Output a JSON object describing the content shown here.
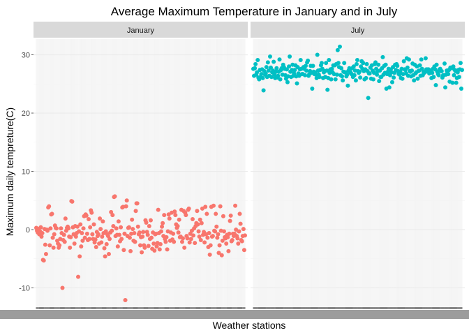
{
  "chart_data": {
    "type": "scatter",
    "title": "Average Maximum Temperature in January and in July",
    "xlabel": "Weather stations",
    "ylabel": "Maximum daily tempreture(C)",
    "yticks": [
      -10,
      0,
      10,
      20,
      30
    ],
    "ylim": [
      -13.3,
      32.7
    ],
    "grid": true,
    "legend": "none",
    "panels": [
      {
        "name": "January",
        "color": "#F8766D",
        "values": [
          0.3,
          -0.2,
          -0.5,
          0.1,
          -0.8,
          -0.3,
          0.4,
          -1.2,
          -0.6,
          -5.2,
          -5.3,
          0.1,
          -2.6,
          -4.2,
          0.0,
          -0.2,
          3.8,
          4.0,
          -2.7,
          0.2,
          2.6,
          2.7,
          -1.4,
          -3.1,
          -0.8,
          0.7,
          0.3,
          0.2,
          -1.9,
          -2.4,
          -3.1,
          -2.7,
          -1.6,
          0.2,
          -0.6,
          -10.0,
          -1.8,
          -0.9,
          -2.1,
          1.9,
          -0.2,
          0.3,
          0.5,
          0.2,
          -1.2,
          -3.1,
          -1.3,
          4.9,
          4.8,
          0.4,
          -0.8,
          -2.4,
          0.6,
          -1.2,
          -0.6,
          0.5,
          -8.1,
          -0.3,
          -4.6,
          0.9,
          -2.9,
          -0.6,
          -1.9,
          0.2,
          2.3,
          -1.4,
          2.6,
          2.4,
          -0.7,
          -1.8,
          1.8,
          -1.6,
          0.4,
          3.3,
          2.9,
          -0.8,
          -1.6,
          0.9,
          -2.2,
          -1.7,
          -3.0,
          -0.4,
          -1.1,
          -0.8,
          -2.4,
          1.9,
          0.1,
          -2.2,
          -1.2,
          1.4,
          -0.6,
          -3.2,
          -4.6,
          -0.3,
          -2.5,
          -0.8,
          -1.1,
          -4.2,
          -1.6,
          -0.5,
          3.0,
          -0.2,
          2.5,
          0.6,
          5.6,
          5.7,
          -1.1,
          0.2,
          -0.9,
          -2.9,
          1.4,
          -0.9,
          -2.0,
          0.4,
          -1.6,
          3.8,
          3.9,
          -3.5,
          -0.7,
          -12.1,
          4.0,
          5.0,
          -1.1,
          0.3,
          0.4,
          -1.4,
          -3.7,
          -0.7,
          1.7,
          0.1,
          -1.9,
          -0.6,
          -2.1,
          3.2,
          4.5,
          4.5,
          0.5,
          -0.8,
          -0.5,
          -2.7,
          -1.3,
          -3.9,
          -1.2,
          -0.4,
          -2.7,
          -3.1,
          1.6,
          1.2,
          -0.4,
          -0.9,
          -2.8,
          0.6,
          -1.6,
          1.6,
          -1.4,
          -3.3,
          -0.5,
          -2.4,
          -3.6,
          -0.8,
          -0.7,
          -2.9,
          -2.3,
          3.4,
          -0.6,
          -3.4,
          -2.5,
          -0.3,
          0.5,
          1.1,
          -1.1,
          2.5,
          -1.6,
          -2.1,
          -1.3,
          -3.4,
          -0.3,
          2.6,
          1.9,
          -1.9,
          -0.5,
          2.9,
          -1.7,
          -0.7,
          -2.1,
          3.1,
          2.5,
          0.9,
          0.3,
          0.6,
          -0.5,
          1.7,
          -1.3,
          -1.2,
          3.4,
          -2.1,
          -1.5,
          3.2,
          -3.1,
          2.9,
          2.5,
          -1.1,
          -1.5,
          3.4,
          3.6,
          -2.2,
          -0.7,
          -1.6,
          -0.2,
          1.8,
          -1.0,
          0.2,
          -2.3,
          0.6,
          1.1,
          3.2,
          0.9,
          -0.3,
          -1.2,
          1.7,
          -1.8,
          1.1,
          3.6,
          -0.9,
          -0.4,
          -2.2,
          3.9,
          -0.8,
          2.7,
          -1.4,
          -3.0,
          -0.6,
          -4.3,
          -2.7,
          3.9,
          -1.2,
          -1.1,
          4.1,
          -0.2,
          -0.3,
          2.7,
          0.5,
          -1.4,
          -0.8,
          -4.0,
          -2.7,
          4.0,
          -0.2,
          -4.4,
          -1.9,
          2.3,
          -0.3,
          -1.3,
          -1.5,
          -2.4,
          -0.9,
          -1.3,
          -3.7,
          -0.7,
          1.5,
          2.4,
          -2.0,
          -1.8,
          -0.7,
          -1.1,
          -0.7,
          4.1,
          0.0,
          -1.1,
          -1.5,
          -2.4,
          -0.3,
          2.7,
          1.0,
          -1.8,
          -2.0,
          -1.1,
          0.1,
          -3.5,
          -1.0
        ]
      },
      {
        "name": "July",
        "color": "#00BFC4",
        "values": [
          27.6,
          26.4,
          27.7,
          28.4,
          26.6,
          27.0,
          29.1,
          26.1,
          25.8,
          27.4,
          26.2,
          26.7,
          27.5,
          26.0,
          23.9,
          27.2,
          26.6,
          26.8,
          27.9,
          26.2,
          28.7,
          27.3,
          26.4,
          29.7,
          27.8,
          26.2,
          27.0,
          27.3,
          28.8,
          26.6,
          26.0,
          27.1,
          27.7,
          26.1,
          26.4,
          27.1,
          29.2,
          25.8,
          27.4,
          27.7,
          26.6,
          28.3,
          27.9,
          27.6,
          26.5,
          25.9,
          27.5,
          25.3,
          26.3,
          28.0,
          29.7,
          27.1,
          26.2,
          27.4,
          28.3,
          26.4,
          26.8,
          27.4,
          28.2,
          26.3,
          25.1,
          27.9,
          26.8,
          26.4,
          27.5,
          29.1,
          27.6,
          26.7,
          26.7,
          27.9,
          27.6,
          26.5,
          28.1,
          27.3,
          28.7,
          29.0,
          26.4,
          26.7,
          27.2,
          28.1,
          26.9,
          24.2,
          28.1,
          27.1,
          26.7,
          27.0,
          26.6,
          26.0,
          30.0,
          27.3,
          26.6,
          26.2,
          27.4,
          28.2,
          28.6,
          27.6,
          26.0,
          27.0,
          27.2,
          26.2,
          28.6,
          27.3,
          24.0,
          26.0,
          29.1,
          26.9,
          27.5,
          25.8,
          27.6,
          27.0,
          28.2,
          26.7,
          28.2,
          25.8,
          28.4,
          26.6,
          30.8,
          28.6,
          27.9,
          31.4,
          26.5,
          27.7,
          26.3,
          25.6,
          27.1,
          28.6,
          27.0,
          27.0,
          26.3,
          26.6,
          24.7,
          27.3,
          27.7,
          27.1,
          26.9,
          26.7,
          27.7,
          26.2,
          28.0,
          26.5,
          27.3,
          25.6,
          28.4,
          29.1,
          27.2,
          26.9,
          27.1,
          26.1,
          28.0,
          28.9,
          27.6,
          28.6,
          27.2,
          25.8,
          27.5,
          26.0,
          28.4,
          27.2,
          22.6,
          26.8,
          26.8,
          27.8,
          25.9,
          28.2,
          27.3,
          25.8,
          26.9,
          28.4,
          28.7,
          27.6,
          26.6,
          27.2,
          28.3,
          25.5,
          27.3,
          26.2,
          26.2,
          27.7,
          29.6,
          26.6,
          28.1,
          26.9,
          28.3,
          24.2,
          26.7,
          27.1,
          27.6,
          24.4,
          26.5,
          27.5,
          27.0,
          25.3,
          27.9,
          26.1,
          26.9,
          28.3,
          27.4,
          28.4,
          28.1,
          27.2,
          26.7,
          26.6,
          27.1,
          26.0,
          27.6,
          25.9,
          26.7,
          28.9,
          27.5,
          27.4,
          26.8,
          29.4,
          27.8,
          26.4,
          29.2,
          27.2,
          27.1,
          26.3,
          27.3,
          28.5,
          26.5,
          25.6,
          28.3,
          26.8,
          27.0,
          28.0,
          25.9,
          27.2,
          27.3,
          28.2,
          26.4,
          29.2,
          27.6,
          26.5,
          27.1,
          26.9,
          27.0,
          29.4,
          27.5,
          27.2,
          27.5,
          27.5,
          26.8,
          27.3,
          27.3,
          26.0,
          26.9,
          27.6,
          26.2,
          28.0,
          27.5,
          24.8,
          28.3,
          27.1,
          26.7,
          26.5,
          27.5,
          27.6,
          27.2,
          27.2,
          26.1,
          26.5,
          26.5,
          28.5,
          24.4,
          26.6,
          27.3,
          26.9,
          26.7,
          27.4,
          25.4,
          27.8,
          27.8,
          27.7,
          25.2,
          28.0,
          26.5,
          27.4,
          27.2,
          25.2,
          26.0,
          27.0,
          27.4,
          26.2,
          27.5,
          28.6,
          24.2,
          27.4
        ]
      }
    ]
  },
  "strip_fill": "#d9d9d9",
  "panel_fill": "#ffffff",
  "gridline_color": "#ebebeb",
  "tick_label_color": "#4d4d4d"
}
